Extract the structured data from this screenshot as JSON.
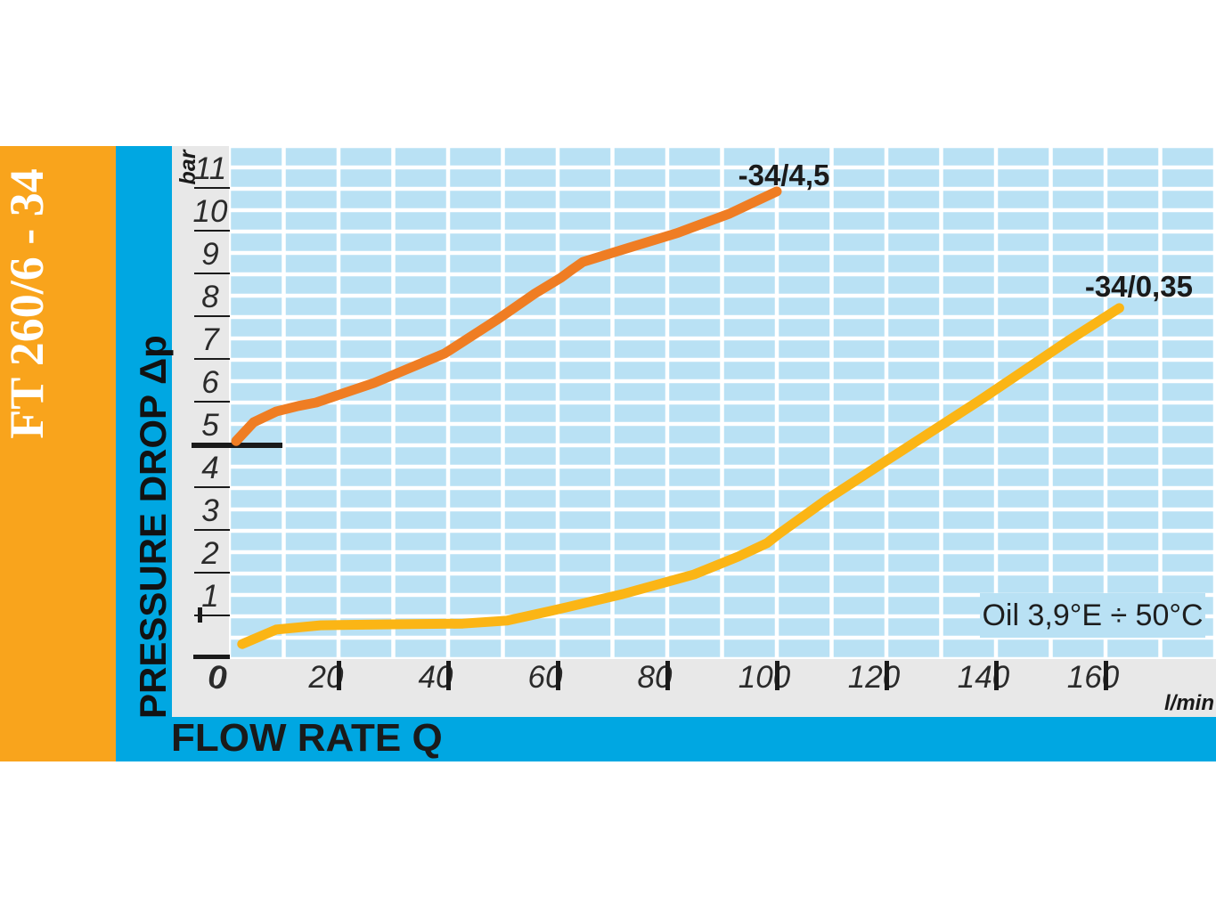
{
  "sidebar": {
    "title": "FT 260/6 - 34"
  },
  "axes": {
    "y_unit": "bar",
    "y_title": "PRESSURE DROP Δp",
    "x_title": "FLOW RATE Q",
    "x_unit": "l/min"
  },
  "annotation": {
    "oil": "Oil 3,9°E ÷ 50°C"
  },
  "colors": {
    "sidebar_orange": "#F9A41C",
    "cyan_band": "#00A7E2",
    "axis_gray": "#E8E8E8",
    "grid_fill": "#B9E1F4",
    "grid_line": "#FFFFFF",
    "curve_high": "#EF7D23",
    "curve_low": "#FBB515",
    "ink": "#1a1a1a"
  },
  "chart_data": {
    "type": "line",
    "title": "Pressure drop vs flow rate - FT 260/6 - 34",
    "xlabel": "FLOW RATE Q (l/min)",
    "ylabel": "PRESSURE DROP Δp (bar)",
    "xlim": [
      0,
      180
    ],
    "ylim": [
      0,
      12
    ],
    "x_ticks": [
      0,
      20,
      40,
      60,
      80,
      100,
      120,
      140,
      160
    ],
    "y_ticks": [
      11,
      10,
      9,
      8,
      7,
      6,
      5,
      4,
      3,
      2,
      1,
      0
    ],
    "x_minor_step": 10,
    "y_minor_step": 0.5,
    "grid": "white minor grid (10 l/min x 0.5 bar) on light blue field",
    "legend_position": "labels at end of each curve",
    "annotation": "Oil 3,9°E ÷ 50°C",
    "series": [
      {
        "name": "-34/4,5",
        "color": "#EF7D23",
        "points": [
          [
            1.3,
            5.1
          ],
          [
            4.5,
            5.54
          ],
          [
            8.6,
            5.79
          ],
          [
            12.7,
            5.92
          ],
          [
            15.9,
            6.0
          ],
          [
            26.5,
            6.46
          ],
          [
            39.4,
            7.15
          ],
          [
            49.2,
            7.96
          ],
          [
            55.7,
            8.54
          ],
          [
            60.6,
            8.92
          ],
          [
            62.5,
            9.1
          ],
          [
            64.6,
            9.29
          ],
          [
            71.9,
            9.58
          ],
          [
            81.7,
            9.96
          ],
          [
            91.4,
            10.42
          ],
          [
            100.0,
            10.94
          ]
        ]
      },
      {
        "name": "-34/0,35",
        "color": "#FBB515",
        "points": [
          [
            2.4,
            0.35
          ],
          [
            8.6,
            0.69
          ],
          [
            16.7,
            0.79
          ],
          [
            28.1,
            0.81
          ],
          [
            42.7,
            0.83
          ],
          [
            50.8,
            0.9
          ],
          [
            58.9,
            1.13
          ],
          [
            71.9,
            1.52
          ],
          [
            84.9,
            1.98
          ],
          [
            93.0,
            2.4
          ],
          [
            98.2,
            2.71
          ],
          [
            100.3,
            2.92
          ],
          [
            109.3,
            3.75
          ],
          [
            120.6,
            4.69
          ],
          [
            136.9,
            6.04
          ],
          [
            153.1,
            7.44
          ],
          [
            162.5,
            8.21
          ]
        ]
      }
    ]
  }
}
